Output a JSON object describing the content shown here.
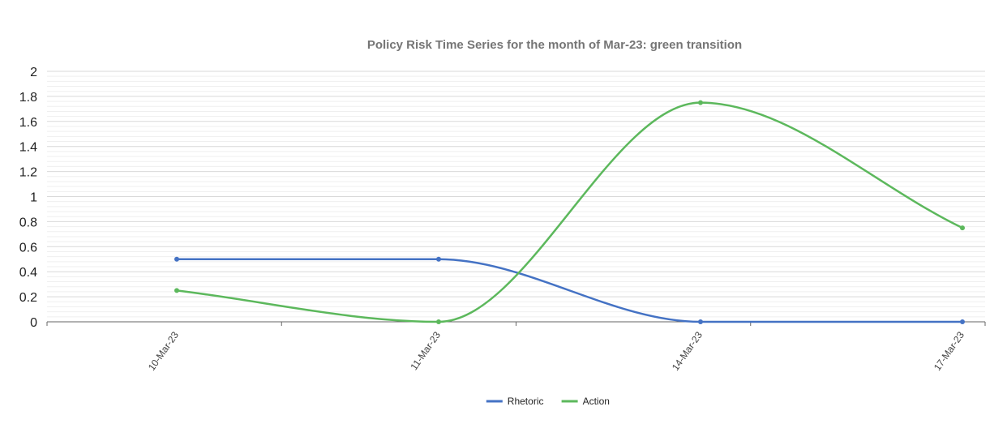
{
  "chart_data": {
    "type": "line",
    "title": "Policy Risk Time Series for the month of Mar-23: green transition",
    "xlabel": "",
    "ylabel": "",
    "categories": [
      "10-Mar-23",
      "11-Mar-23",
      "14-Mar-23",
      "17-Mar-23"
    ],
    "ylim": [
      0,
      2
    ],
    "yticks": [
      0,
      0.2,
      0.4,
      0.6,
      0.8,
      1,
      1.2,
      1.4,
      1.6,
      1.8,
      2
    ],
    "grid": true,
    "smooth": true,
    "legend_position": "bottom",
    "series": [
      {
        "name": "Rhetoric",
        "color": "#4472C4",
        "values": [
          0.5,
          0.5,
          0,
          0
        ]
      },
      {
        "name": "Action",
        "color": "#5CB85C",
        "values": [
          0.25,
          0,
          1.75,
          0.75
        ]
      }
    ]
  },
  "colors": {
    "grid_major": "#d9d9d9",
    "grid_minor": "#efefef",
    "axis": "#666666"
  }
}
